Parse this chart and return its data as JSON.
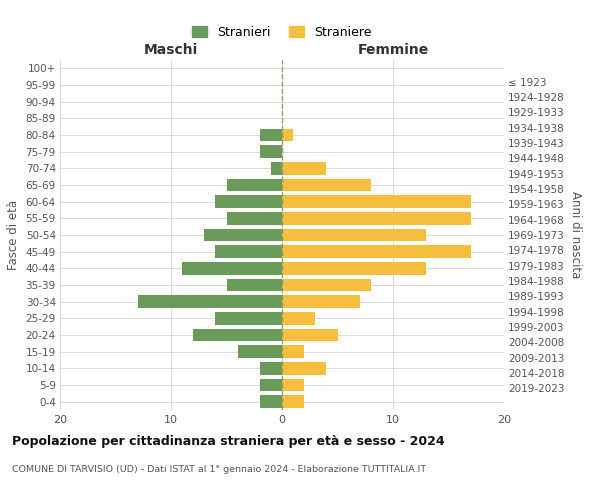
{
  "age_groups": [
    "0-4",
    "5-9",
    "10-14",
    "15-19",
    "20-24",
    "25-29",
    "30-34",
    "35-39",
    "40-44",
    "45-49",
    "50-54",
    "55-59",
    "60-64",
    "65-69",
    "70-74",
    "75-79",
    "80-84",
    "85-89",
    "90-94",
    "95-99",
    "100+"
  ],
  "birth_years": [
    "2019-2023",
    "2014-2018",
    "2009-2013",
    "2004-2008",
    "1999-2003",
    "1994-1998",
    "1989-1993",
    "1984-1988",
    "1979-1983",
    "1974-1978",
    "1969-1973",
    "1964-1968",
    "1959-1963",
    "1954-1958",
    "1949-1953",
    "1944-1948",
    "1939-1943",
    "1934-1938",
    "1929-1933",
    "1924-1928",
    "≤ 1923"
  ],
  "maschi": [
    2,
    2,
    2,
    4,
    8,
    6,
    13,
    5,
    9,
    6,
    7,
    5,
    6,
    5,
    1,
    2,
    2,
    0,
    0,
    0,
    0
  ],
  "femmine": [
    2,
    2,
    4,
    2,
    5,
    3,
    7,
    8,
    13,
    17,
    13,
    17,
    17,
    8,
    4,
    0,
    1,
    0,
    0,
    0,
    0
  ],
  "maschi_color": "#6a9a5a",
  "femmine_color": "#f5be3c",
  "grid_color": "#cccccc",
  "dashed_color": "#999966",
  "title": "Popolazione per cittadinanza straniera per età e sesso - 2024",
  "subtitle": "COMUNE DI TARVISIO (UD) - Dati ISTAT al 1° gennaio 2024 - Elaborazione TUTTITALIA.IT",
  "xlabel_left": "Maschi",
  "xlabel_right": "Femmine",
  "ylabel_left": "Fasce di età",
  "ylabel_right": "Anni di nascita",
  "legend_stranieri": "Stranieri",
  "legend_straniere": "Straniere",
  "xlim": 20,
  "bar_height": 0.75
}
